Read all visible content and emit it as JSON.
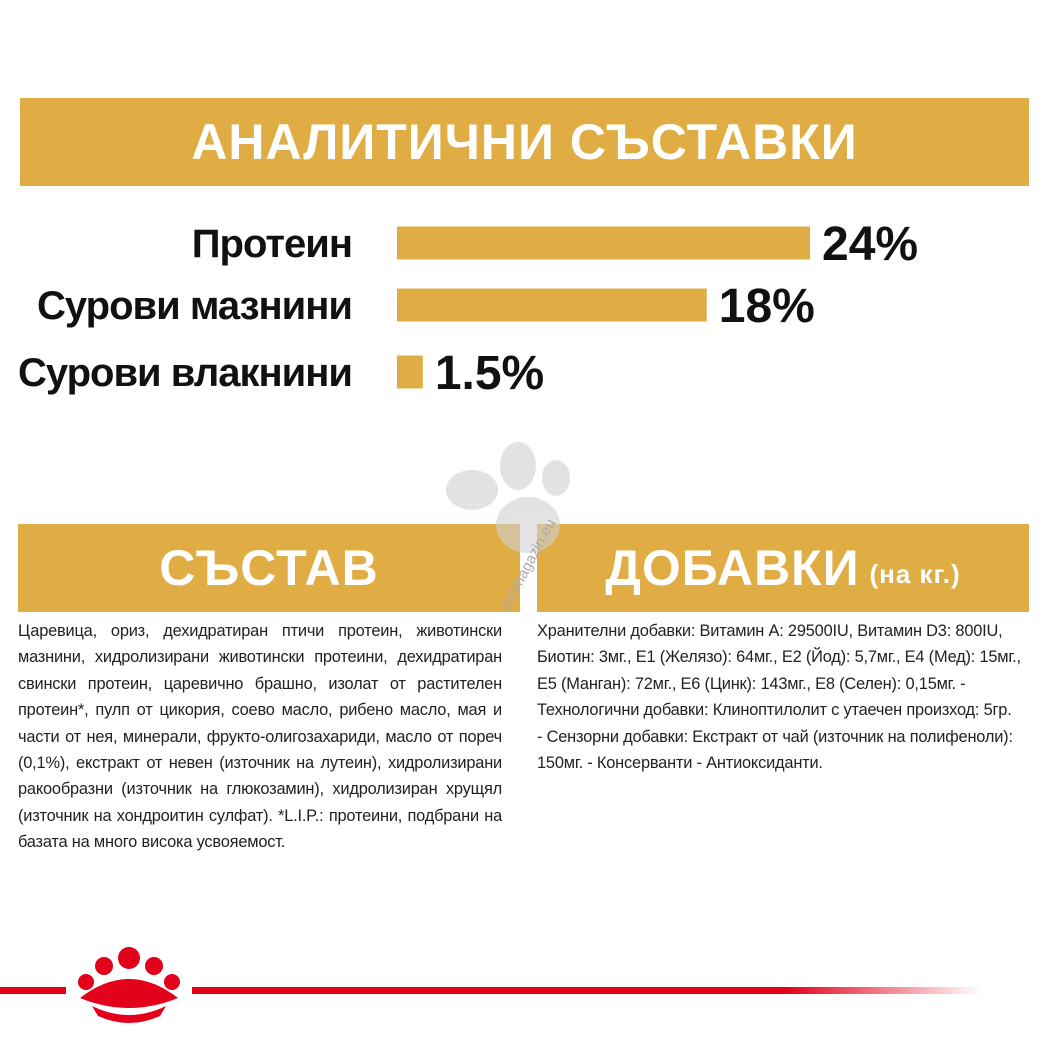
{
  "header": {
    "title": "АНАЛИТИЧНИ СЪСТАВКИ"
  },
  "chart_data": {
    "type": "bar",
    "orientation": "horizontal",
    "categories": [
      "Протеин",
      "Сурови мазнини",
      "Сурови влакнини"
    ],
    "values": [
      24,
      18,
      1.5
    ],
    "value_labels": [
      "24%",
      "18%",
      "1.5%"
    ],
    "color": "#dfad44"
  },
  "composition": {
    "title": "СЪСТАВ",
    "text": "Царевица, ориз, дехидратиран птичи протеин, животински мазнини, хидролизирани животински протеини, дехидратиран свински протеин, царевично брашно, изолат от растителен протеин*, пулп от цикория, соево масло, рибено масло, мая и части от нея, минерали, фрукто-олигозахариди, масло от пореч (0,1%), екстракт от невен (източник на лутеин), хидролизирани ракообразни (източник на глюкозамин), хидролизиран хрущял (източник на хондроитин сулфат). *L.I.P.: протеини, подбрани на базата на много висока усвояемост."
  },
  "additives": {
    "title": "ДОБАВКИ",
    "unit": "(на кг.)",
    "text": "Хранителни добавки: Витамин А: 29500IU, Витамин D3: 800IU, Биотин: 3мг., Е1 (Желязо): 64мг., Е2 (Йод): 5,7мг., Е4 (Мед): 15мг., Е5 (Манган): 72мг., Е6 (Цинк): 143мг., Е8 (Селен): 0,15мг. - Технологични добавки: Клиноптилолит с утаечен произход: 5гр. - Сензорни добавки: Екстракт от чай (източник на полифеноли): 150мг. - Консерванти - Антиоксиданти."
  },
  "watermark": "zoomagazin.eu"
}
